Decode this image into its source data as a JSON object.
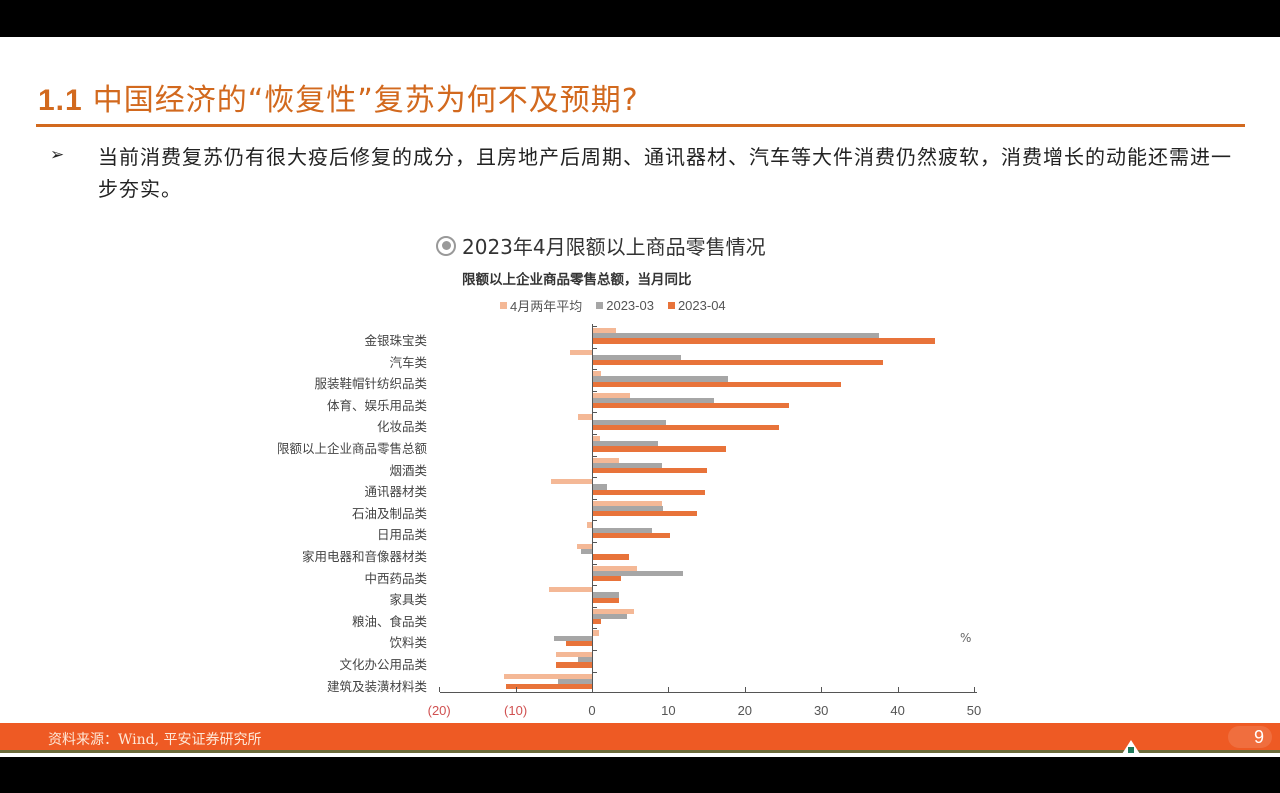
{
  "slide": {
    "title_number": "1.1",
    "title_text": "中国经济的“恢复性”复苏为何不及预期?",
    "bullet_symbol": "➢",
    "bullet_text": "当前消费复苏仍有很大疫后修复的成分，且房地产后周期、通讯器材、汽车等大件消费仍然疲软，消费增长的动能还需进一步夯实。",
    "chart_heading": "2023年4月限额以上商品零售情况",
    "source": "资料来源：Wind, 平安证券研究所",
    "page_number": "9"
  },
  "colors": {
    "accent": "#d2691e",
    "footer": "#ee5a24",
    "series_light": "#f4b896",
    "series_gray": "#a6a6a6",
    "series_orange": "#e8733a"
  },
  "chart_data": {
    "type": "bar",
    "orientation": "horizontal",
    "title": "限额以上企业商品零售总额，当月同比",
    "xlabel": "",
    "ylabel": "",
    "unit": "%",
    "xlim": [
      -20,
      50
    ],
    "xticks": [
      "(20)",
      "(10)",
      "0",
      "10",
      "20",
      "30",
      "40",
      "50"
    ],
    "legend_position": "top",
    "grid": false,
    "categories": [
      "金银珠宝类",
      "汽车类",
      "服装鞋帽针纺织品类",
      "体育、娱乐用品类",
      "化妆品类",
      "限额以上企业商品零售总额",
      "烟酒类",
      "通讯器材类",
      "石油及制品类",
      "日用品类",
      "家用电器和音像器材类",
      "中西药品类",
      "家具类",
      "粮油、食品类",
      "饮料类",
      "文化办公用品类",
      "建筑及装潢材料类"
    ],
    "series": [
      {
        "name": "4月两年平均",
        "color": "#f4b896",
        "values": [
          3.0,
          -2.9,
          1.0,
          4.8,
          -1.8,
          0.9,
          3.4,
          -5.4,
          9.0,
          -0.6,
          -2.0,
          5.8,
          -5.6,
          5.4,
          0.8,
          -4.7,
          -11.5
        ]
      },
      {
        "name": "2023-03",
        "color": "#a6a6a6",
        "values": [
          37.4,
          11.5,
          17.7,
          15.8,
          9.6,
          8.5,
          9.0,
          1.8,
          9.2,
          7.7,
          -1.4,
          11.8,
          3.4,
          4.4,
          -5.0,
          -1.8,
          -4.5
        ]
      },
      {
        "name": "2023-04",
        "color": "#e8733a",
        "values": [
          44.7,
          38.0,
          32.4,
          25.6,
          24.3,
          17.4,
          14.9,
          14.6,
          13.6,
          10.1,
          4.7,
          3.7,
          3.4,
          1.0,
          -3.4,
          -4.7,
          -11.2
        ]
      }
    ]
  }
}
